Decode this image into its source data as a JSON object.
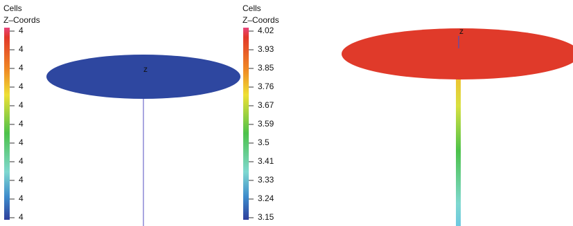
{
  "panels": [
    {
      "title": "Cells",
      "subtitle": "Z–Coords",
      "axis_label": "z",
      "ticks": [
        "4",
        "4",
        "4",
        "4",
        "4",
        "4",
        "4",
        "4",
        "4",
        "4",
        "4"
      ]
    },
    {
      "title": "Cells",
      "subtitle": "Z–Coords",
      "axis_label": "z",
      "ticks": [
        "4.02",
        "3.93",
        "3.85",
        "3.76",
        "3.67",
        "3.59",
        "3.5",
        "3.41",
        "3.33",
        "3.24",
        "3.15"
      ]
    }
  ]
}
